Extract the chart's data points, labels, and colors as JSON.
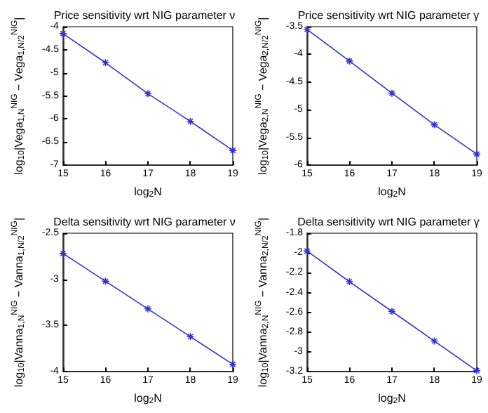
{
  "chart_data": [
    {
      "type": "line",
      "title": "Price sensitivity wrt NIG parameter ν",
      "xlabel": "log$_{2}$N",
      "ylabel": "log$_{10}$|Vega$_{1,N}$$^{NIG}$ − Vega$_{1,N/2}$$^{NIG}$|",
      "x": [
        15,
        16,
        17,
        18,
        19
      ],
      "series": [
        {
          "color": "#3333cc",
          "values": [
            -4.15,
            -4.78,
            -5.45,
            -6.05,
            -6.68
          ]
        }
      ],
      "xlim": [
        15,
        19
      ],
      "xticks": [
        15,
        16,
        17,
        18,
        19
      ],
      "ylim": [
        -7,
        -4
      ],
      "yticks": [
        -7,
        -6.5,
        -6,
        -5.5,
        -5,
        -4.5,
        -4
      ],
      "marker": "cross",
      "line_style": "solid",
      "grid": false
    },
    {
      "type": "line",
      "title": "Price sensitivity wrt NIG parameter γ",
      "xlabel": "log$_{2}$N",
      "ylabel": "log$_{10}$|Vega$_{2,N}$$^{NIG}$ − Vega$_{2,N/2}$$^{NIG}$|",
      "x": [
        15,
        16,
        17,
        18,
        19
      ],
      "series": [
        {
          "color": "#3333cc",
          "values": [
            -3.55,
            -4.12,
            -4.7,
            -5.27,
            -5.8
          ]
        }
      ],
      "xlim": [
        15,
        19
      ],
      "xticks": [
        15,
        16,
        17,
        18,
        19
      ],
      "ylim": [
        -6,
        -3.5
      ],
      "yticks": [
        -6,
        -5.5,
        -5,
        -4.5,
        -4,
        -3.5
      ],
      "marker": "cross",
      "line_style": "solid",
      "grid": false
    },
    {
      "type": "line",
      "title": "Delta sensitivity wrt NIG parameter ν",
      "xlabel": "log$_{2}$N",
      "ylabel": "log$_{10}$|Vanna$_{1,N}$$^{NIG}$ − Vanna$_{1,N/2}$$^{NIG}$|",
      "x": [
        15,
        16,
        17,
        18,
        19
      ],
      "series": [
        {
          "color": "#3333cc",
          "values": [
            -2.72,
            -3.02,
            -3.32,
            -3.62,
            -3.92
          ]
        }
      ],
      "xlim": [
        15,
        19
      ],
      "xticks": [
        15,
        16,
        17,
        18,
        19
      ],
      "ylim": [
        -4,
        -2.5
      ],
      "yticks": [
        -4,
        -3.5,
        -3,
        -2.5
      ],
      "marker": "cross",
      "line_style": "solid",
      "grid": false
    },
    {
      "type": "line",
      "title": "Delta sensitivity wrt NIG parameter γ",
      "xlabel": "log$_{2}$N",
      "ylabel": "log$_{10}$|Vanna$_{2,N}$$^{NIG}$ − Vanna$_{2,N/2}$$^{NIG}$|",
      "x": [
        15,
        16,
        17,
        18,
        19
      ],
      "series": [
        {
          "color": "#3333cc",
          "values": [
            -1.98,
            -2.29,
            -2.59,
            -2.89,
            -3.19
          ]
        }
      ],
      "xlim": [
        15,
        19
      ],
      "xticks": [
        15,
        16,
        17,
        18,
        19
      ],
      "ylim": [
        -3.2,
        -1.8
      ],
      "yticks": [
        -3.2,
        -3,
        -2.8,
        -2.6,
        -2.4,
        -2.2,
        -2,
        -1.8
      ],
      "marker": "cross",
      "line_style": "solid",
      "grid": false
    }
  ]
}
